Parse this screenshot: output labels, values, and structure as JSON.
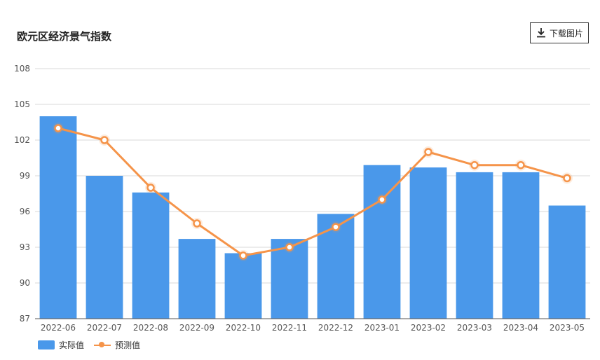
{
  "header": {
    "title": "欧元区经济景气指数"
  },
  "toolbar": {
    "download_label": "下载图片",
    "download_icon": "download-icon"
  },
  "legend": {
    "actual_label": "实际值",
    "forecast_label": "预测值"
  },
  "colors": {
    "bar": "#4a98ea",
    "line": "#f5944a",
    "grid": "#d8d8d8",
    "axis_text": "#555555"
  },
  "chart_data": {
    "type": "bar",
    "categories": [
      "2022-06",
      "2022-07",
      "2022-08",
      "2022-09",
      "2022-10",
      "2022-11",
      "2022-12",
      "2023-01",
      "2023-02",
      "2023-03",
      "2023-04",
      "2023-05"
    ],
    "series": [
      {
        "name": "实际值",
        "type": "bar",
        "values": [
          104.0,
          99.0,
          97.6,
          93.7,
          92.5,
          93.7,
          95.8,
          99.9,
          99.7,
          99.3,
          99.3,
          96.5
        ]
      },
      {
        "name": "预测值",
        "type": "line",
        "values": [
          103.0,
          102.0,
          98.0,
          95.0,
          92.3,
          93.0,
          94.7,
          97.0,
          101.0,
          99.9,
          99.9,
          98.8
        ]
      }
    ],
    "yticks": [
      87,
      90,
      93,
      96,
      99,
      102,
      105,
      108
    ],
    "ylim": [
      87,
      108
    ],
    "grid": true,
    "legend_position": "bottom-left"
  }
}
